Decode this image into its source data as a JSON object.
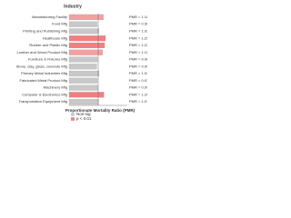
{
  "chart_data": {
    "type": "bar",
    "orientation": "horizontal",
    "title": "Industry",
    "x_label": "Proportionate Mortality Ratio (PMR)",
    "categories": [
      "Manufacturing Facility",
      "Food Mfg",
      "Printing and Publishing Mfg",
      "Healthcare Mfg",
      "Rubber and Plastic Mfg",
      "Lumber and Wood Product Mfg",
      "Furniture & Fixtures Mfg",
      "Stone, clay, glass, concrete Mfg",
      "Primary Metal Industries Mfg",
      "Fabricated Metal Product Mfg",
      "Machinery Mfg",
      "Computer & Electronics Mfg",
      "Transportation Equipment Mfg"
    ],
    "values": [
      1.18,
      0.96,
      1.02,
      1.25,
      1.22,
      1.15,
      0.98,
      0.95,
      1.03,
      0.97,
      0.99,
      1.2,
      1.01
    ],
    "value_labels": [
      "PMR = 1.18",
      "PMR = 0.96",
      "PMR = 1.02",
      "PMR = 1.25",
      "PMR = 1.22",
      "PMR = 1.15",
      "PMR = 0.98",
      "PMR = 0.95",
      "PMR = 1.03",
      "PMR = 0.97",
      "PMR = 0.99",
      "PMR = 1.20",
      "PMR = 1.01"
    ],
    "colors": [
      "#f4a0a0",
      "#c8c8c8",
      "#c8c8c8",
      "#f08080",
      "#f08080",
      "#f4a0a0",
      "#c8c8c8",
      "#c8c8c8",
      "#c8c8c8",
      "#c8c8c8",
      "#c8c8c8",
      "#f08080",
      "#c8c8c8"
    ],
    "xlim": [
      0,
      2
    ],
    "reference_line": 1,
    "legend": [
      {
        "name": "Non-sig",
        "color": "#c8c8c8"
      },
      {
        "name": "p < 0.01",
        "color": "#f08080"
      }
    ]
  }
}
